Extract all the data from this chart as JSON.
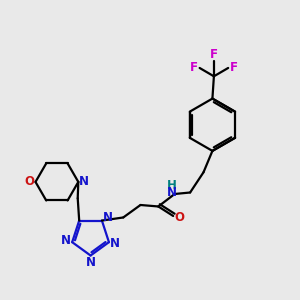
{
  "background_color": "#e9e9e9",
  "bond_color": "#000000",
  "nitrogen_color": "#1414cc",
  "oxygen_color": "#cc1414",
  "fluorine_color": "#cc00cc",
  "NH_color": "#008080",
  "bond_width": 1.6,
  "figsize": [
    3.0,
    3.0
  ],
  "dpi": 100,
  "xlim": [
    0,
    10
  ],
  "ylim": [
    0,
    10
  ]
}
